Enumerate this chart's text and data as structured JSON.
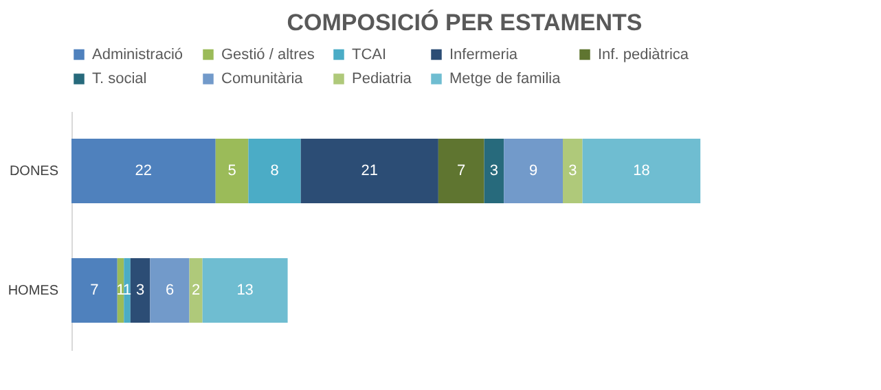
{
  "chart_data": {
    "type": "bar",
    "orientation": "horizontal",
    "stacked": true,
    "title": "COMPOSICIÓ PER ESTAMENTS",
    "categories": [
      "DONES",
      "HOMES"
    ],
    "series": [
      {
        "name": "Administració",
        "color": "#4f81bd",
        "values": [
          22,
          7
        ]
      },
      {
        "name": "Gestió / altres",
        "color": "#9bbb59",
        "values": [
          5,
          1
        ]
      },
      {
        "name": "TCAI",
        "color": "#4bacc6",
        "values": [
          8,
          1
        ]
      },
      {
        "name": "Infermeria",
        "color": "#2c4d75",
        "values": [
          21,
          3
        ]
      },
      {
        "name": "Inf. pediàtrica",
        "color": "#5f7530",
        "values": [
          7,
          null
        ]
      },
      {
        "name": "T. social",
        "color": "#276a7c",
        "values": [
          3,
          null
        ]
      },
      {
        "name": "Comunitària",
        "color": "#729aca",
        "values": [
          9,
          6
        ]
      },
      {
        "name": "Pediatria",
        "color": "#afc97a",
        "values": [
          3,
          2
        ]
      },
      {
        "name": "Metge de familia",
        "color": "#6fbdd1",
        "values": [
          18,
          13
        ]
      }
    ],
    "data_labels": true,
    "legend": "top"
  }
}
